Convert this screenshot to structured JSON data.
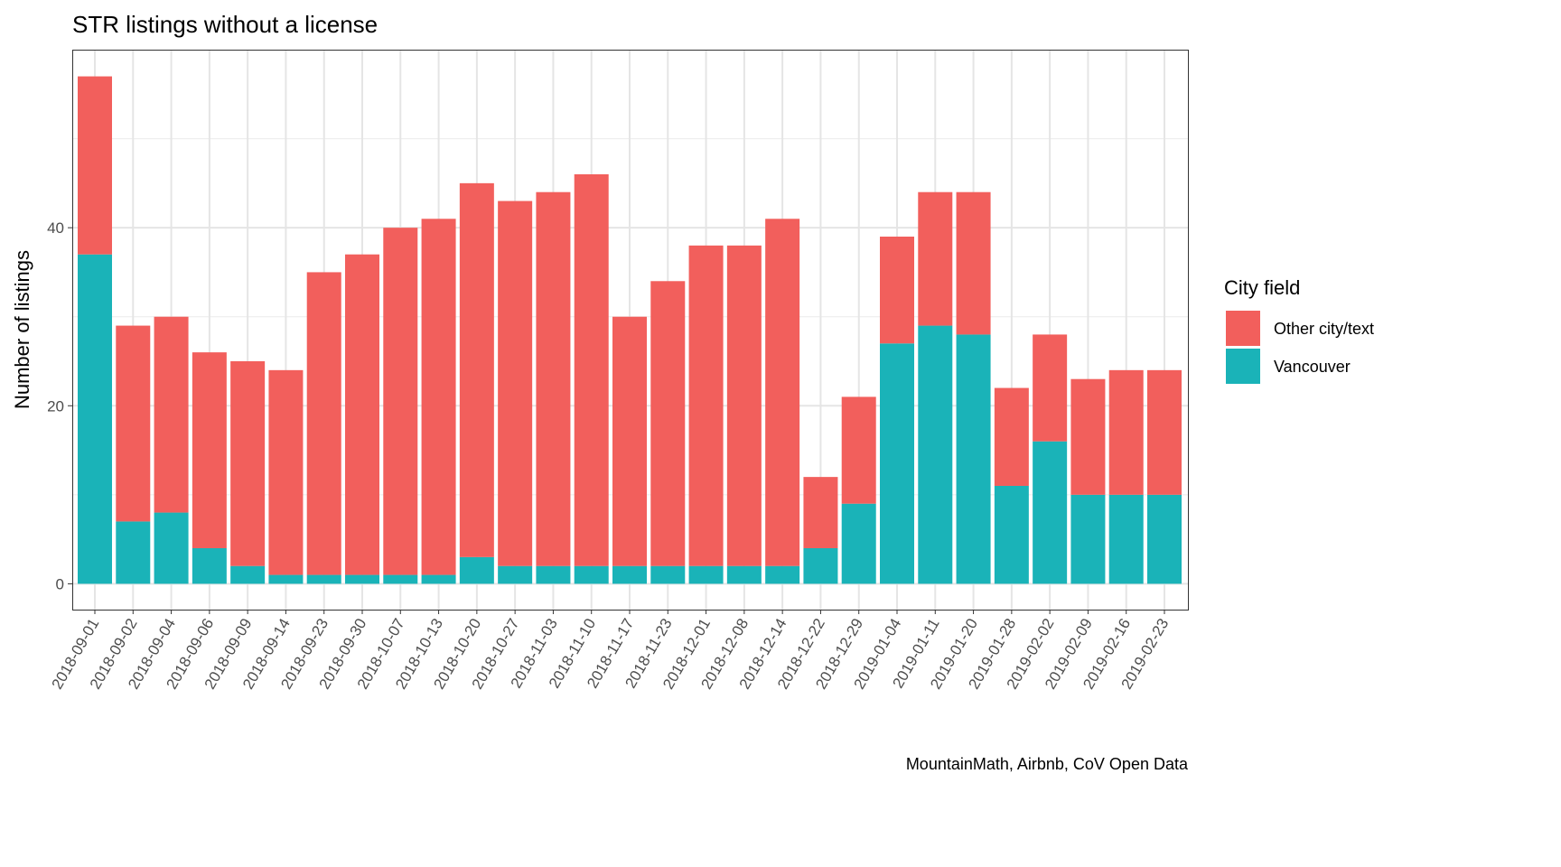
{
  "chart_data": {
    "type": "bar",
    "stacked": true,
    "title": "STR listings without a license",
    "xlabel": "",
    "ylabel": "Number of listings",
    "caption": "MountainMath, Airbnb, CoV Open Data",
    "ylim": [
      -2.9,
      60
    ],
    "yticks": [
      0,
      20,
      40
    ],
    "grid": true,
    "legend": {
      "title": "City field",
      "position": "right"
    },
    "categories": [
      "2018-09-01",
      "2018-09-02",
      "2018-09-04",
      "2018-09-06",
      "2018-09-09",
      "2018-09-14",
      "2018-09-23",
      "2018-09-30",
      "2018-10-07",
      "2018-10-13",
      "2018-10-20",
      "2018-10-27",
      "2018-11-03",
      "2018-11-10",
      "2018-11-17",
      "2018-11-23",
      "2018-12-01",
      "2018-12-08",
      "2018-12-14",
      "2018-12-22",
      "2018-12-29",
      "2019-01-04",
      "2019-01-11",
      "2019-01-20",
      "2019-01-28",
      "2019-02-02",
      "2019-02-09",
      "2019-02-16",
      "2019-02-23"
    ],
    "series": [
      {
        "name": "Other city/text",
        "color": "#F25F5C",
        "values": [
          20,
          22,
          22,
          22,
          23,
          23,
          34,
          36,
          39,
          40,
          42,
          41,
          42,
          44,
          28,
          32,
          36,
          36,
          39,
          8,
          12,
          12,
          15,
          16,
          11,
          12,
          13,
          14,
          14
        ]
      },
      {
        "name": "Vancouver",
        "color": "#1AB3B8",
        "values": [
          37,
          7,
          8,
          4,
          2,
          1,
          1,
          1,
          1,
          1,
          3,
          2,
          2,
          2,
          2,
          2,
          2,
          2,
          2,
          4,
          9,
          27,
          29,
          28,
          11,
          16,
          10,
          10,
          10
        ]
      }
    ]
  }
}
